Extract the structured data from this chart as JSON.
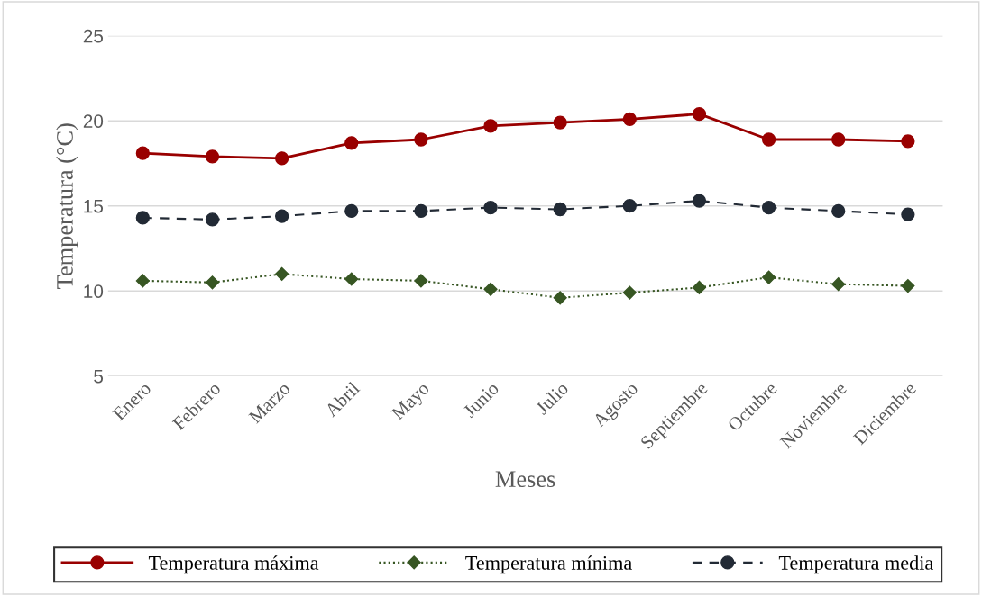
{
  "chart_data": {
    "type": "line",
    "xlabel": "Meses",
    "ylabel": "Temperatura (°C)",
    "categories": [
      "Enero",
      "Febrero",
      "Marzo",
      "Abril",
      "Mayo",
      "Junio",
      "Julio",
      "Agosto",
      "Septiembre",
      "Octubre",
      "Noviembre",
      "Diciembre"
    ],
    "series": [
      {
        "name": "Temperatura máxima",
        "color": "#990000",
        "marker": "circle",
        "line_style": "solid",
        "values": [
          18.1,
          17.9,
          17.8,
          18.7,
          18.9,
          19.7,
          19.9,
          20.1,
          20.4,
          18.9,
          18.9,
          18.8
        ]
      },
      {
        "name": "Temperatura mínima",
        "color": "#375623",
        "marker": "diamond",
        "line_style": "dotted",
        "values": [
          10.6,
          10.5,
          11.0,
          10.7,
          10.6,
          10.1,
          9.6,
          9.9,
          10.2,
          10.8,
          10.4,
          10.3
        ]
      },
      {
        "name": "Temperatura media",
        "color": "#222a35",
        "marker": "circle",
        "line_style": "dashed",
        "values": [
          14.3,
          14.2,
          14.4,
          14.7,
          14.7,
          14.9,
          14.8,
          15.0,
          15.3,
          14.9,
          14.7,
          14.5
        ]
      }
    ],
    "ylim": [
      5,
      25
    ],
    "yticks": [
      5,
      10,
      15,
      20,
      25
    ],
    "grid": "y",
    "legend": "bottom"
  }
}
